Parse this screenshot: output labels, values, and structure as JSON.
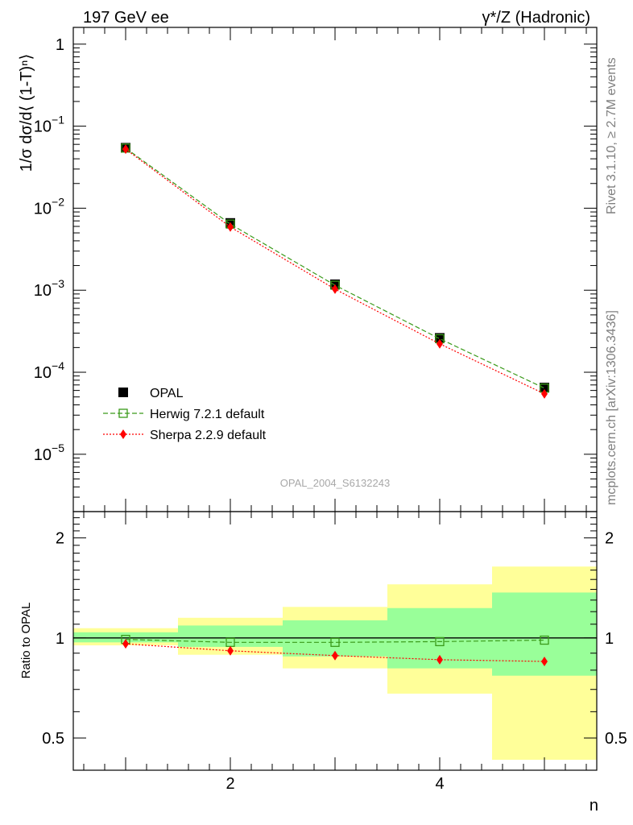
{
  "header": {
    "left": "197 GeV ee",
    "right": "γ*/Z (Hadronic)"
  },
  "side_labels": {
    "top": "Rivet 3.1.10, ≥ 2.7M events",
    "bottom": "mcplots.cern.ch [arXiv:1306.3436]"
  },
  "watermark": "OPAL_2004_S6132243",
  "chart_data": [
    {
      "type": "line",
      "panel": "main",
      "ylabel": "1/σ dσ/d⟨ (1-T)ⁿ⟩",
      "yscale": "log",
      "xlim": [
        0.5,
        5.5
      ],
      "ylim": [
        2e-06,
        1.6
      ],
      "y_ticks": [
        {
          "value": 1,
          "label": "1"
        },
        {
          "value": 0.1,
          "label": "10",
          "exp": "−1"
        },
        {
          "value": 0.01,
          "label": "10",
          "exp": "−2"
        },
        {
          "value": 0.001,
          "label": "10",
          "exp": "−3"
        },
        {
          "value": 0.0001,
          "label": "10",
          "exp": "−4"
        },
        {
          "value": 1e-05,
          "label": "10",
          "exp": "−5"
        }
      ],
      "legend_position": "lower-left",
      "series": [
        {
          "name": "OPAL",
          "marker": "square-filled",
          "color": "#000000",
          "x": [
            1,
            2,
            3,
            4,
            5
          ],
          "y": [
            0.0545,
            0.0066,
            0.00118,
            0.000262,
            6.5e-05
          ]
        },
        {
          "name": "Herwig 7.2.1 default",
          "marker": "square-open",
          "line": "dashed",
          "color": "#3a9a1a",
          "x": [
            1,
            2,
            3,
            4,
            5
          ],
          "y": [
            0.054,
            0.0064,
            0.00115,
            0.000256,
            6.4e-05
          ]
        },
        {
          "name": "Sherpa 2.2.9 default",
          "marker": "diamond",
          "line": "dotted",
          "color": "#ff0000",
          "x": [
            1,
            2,
            3,
            4,
            5
          ],
          "y": [
            0.0525,
            0.0059,
            0.00103,
            0.000222,
            5.45e-05
          ]
        }
      ]
    },
    {
      "type": "line",
      "panel": "ratio",
      "ylabel": "Ratio to OPAL",
      "xlabel": "n",
      "yscale": "log",
      "xlim": [
        0.5,
        5.5
      ],
      "ylim": [
        0.4,
        2.4
      ],
      "x_ticks": [
        {
          "value": 2,
          "label": "2"
        },
        {
          "value": 4,
          "label": "4"
        }
      ],
      "y_ticks": [
        {
          "value": 0.5,
          "label": "0.5"
        },
        {
          "value": 1,
          "label": "1"
        },
        {
          "value": 2,
          "label": "2"
        }
      ],
      "bands": [
        {
          "x_low": 0.5,
          "x_high": 1.5,
          "yellow": [
            0.95,
            1.07
          ],
          "green": [
            0.97,
            1.04
          ]
        },
        {
          "x_low": 1.5,
          "x_high": 2.5,
          "yellow": [
            0.89,
            1.15
          ],
          "green": [
            0.94,
            1.09
          ]
        },
        {
          "x_low": 2.5,
          "x_high": 3.5,
          "yellow": [
            0.81,
            1.24
          ],
          "green": [
            0.88,
            1.13
          ]
        },
        {
          "x_low": 3.5,
          "x_high": 4.5,
          "yellow": [
            0.68,
            1.45
          ],
          "green": [
            0.81,
            1.23
          ]
        },
        {
          "x_low": 4.5,
          "x_high": 5.5,
          "yellow": [
            0.43,
            1.64
          ],
          "green": [
            0.77,
            1.37
          ]
        }
      ],
      "series": [
        {
          "name": "Herwig 7.2.1 default",
          "marker": "square-open",
          "line": "dashed",
          "color": "#3a9a1a",
          "x": [
            1,
            2,
            3,
            4,
            5
          ],
          "y": [
            0.99,
            0.97,
            0.97,
            0.975,
            0.985
          ]
        },
        {
          "name": "Sherpa 2.2.9 default",
          "marker": "diamond",
          "line": "dotted",
          "color": "#ff0000",
          "x": [
            1,
            2,
            3,
            4,
            5
          ],
          "y": [
            0.96,
            0.915,
            0.885,
            0.86,
            0.85
          ]
        }
      ]
    }
  ]
}
